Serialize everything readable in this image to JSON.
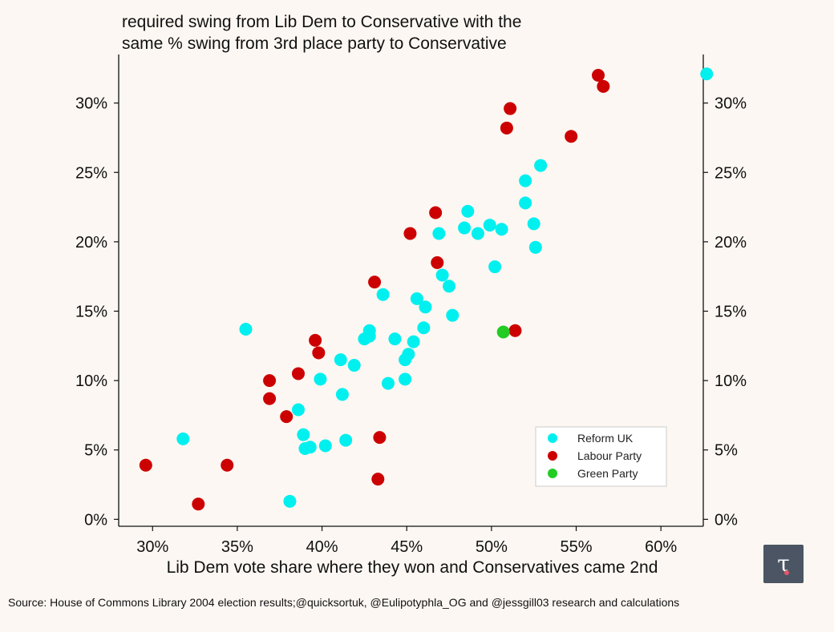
{
  "chart_data": {
    "type": "scatter",
    "title": [
      "required swing from Lib Dem to Conservative with the",
      "same % swing from 3rd place party to Conservative"
    ],
    "xlabel": "Lib Dem vote share where they won and Conservatives came 2nd",
    "ylabel": "",
    "xlim": [
      28,
      62.5
    ],
    "ylim": [
      -0.5,
      33.5
    ],
    "x_ticks": [
      30,
      35,
      40,
      45,
      50,
      55,
      60
    ],
    "x_tick_labels": [
      "30%",
      "35%",
      "40%",
      "45%",
      "50%",
      "55%",
      "60%"
    ],
    "y_ticks": [
      0,
      5,
      10,
      15,
      20,
      25,
      30
    ],
    "y_tick_labels": [
      "0%",
      "5%",
      "10%",
      "15%",
      "20%",
      "25%",
      "30%"
    ],
    "grid": false,
    "legend_position": "lower-right",
    "series": [
      {
        "name": "Reform UK",
        "color": "#00f0f0",
        "points": [
          [
            31.8,
            5.8
          ],
          [
            35.5,
            13.7
          ],
          [
            38.1,
            1.3
          ],
          [
            38.6,
            7.9
          ],
          [
            38.9,
            6.1
          ],
          [
            39.0,
            5.1
          ],
          [
            39.3,
            5.2
          ],
          [
            39.9,
            10.1
          ],
          [
            40.2,
            5.3
          ],
          [
            41.1,
            11.5
          ],
          [
            41.2,
            9.0
          ],
          [
            41.4,
            5.7
          ],
          [
            41.9,
            11.1
          ],
          [
            42.5,
            13.0
          ],
          [
            42.8,
            13.6
          ],
          [
            42.8,
            13.2
          ],
          [
            43.6,
            16.2
          ],
          [
            43.9,
            9.8
          ],
          [
            44.3,
            13.0
          ],
          [
            44.9,
            11.5
          ],
          [
            44.9,
            10.1
          ],
          [
            45.1,
            11.9
          ],
          [
            45.4,
            12.8
          ],
          [
            45.6,
            15.9
          ],
          [
            46.0,
            13.8
          ],
          [
            46.1,
            15.3
          ],
          [
            46.9,
            20.6
          ],
          [
            47.1,
            17.6
          ],
          [
            47.5,
            16.8
          ],
          [
            47.7,
            14.7
          ],
          [
            48.4,
            21.0
          ],
          [
            48.6,
            22.2
          ],
          [
            49.2,
            20.6
          ],
          [
            49.9,
            21.2
          ],
          [
            50.2,
            18.2
          ],
          [
            50.6,
            20.9
          ],
          [
            52.0,
            24.4
          ],
          [
            52.0,
            22.8
          ],
          [
            52.5,
            21.3
          ],
          [
            52.6,
            19.6
          ],
          [
            52.9,
            25.5
          ],
          [
            62.7,
            32.1
          ]
        ]
      },
      {
        "name": "Labour Party",
        "color": "#cc0000",
        "points": [
          [
            29.6,
            3.9
          ],
          [
            32.7,
            1.1
          ],
          [
            34.4,
            3.9
          ],
          [
            36.9,
            10.0
          ],
          [
            36.9,
            8.7
          ],
          [
            37.9,
            7.4
          ],
          [
            38.6,
            10.5
          ],
          [
            39.6,
            12.9
          ],
          [
            39.8,
            12.0
          ],
          [
            43.1,
            17.1
          ],
          [
            43.3,
            2.9
          ],
          [
            43.4,
            5.9
          ],
          [
            45.2,
            20.6
          ],
          [
            46.7,
            22.1
          ],
          [
            46.8,
            18.5
          ],
          [
            50.9,
            28.2
          ],
          [
            51.1,
            29.6
          ],
          [
            51.4,
            13.6
          ],
          [
            54.7,
            27.6
          ],
          [
            56.3,
            32.0
          ],
          [
            56.6,
            31.2
          ]
        ]
      },
      {
        "name": "Green Party",
        "color": "#22cc22",
        "points": [
          [
            50.7,
            13.5
          ]
        ]
      }
    ]
  },
  "source": "Source: House of Commons Library 2004 election results;@quicksortuk, @Eulipotyphla_OG and @jessgill03 research and calculations",
  "logo_glyph": "τ"
}
